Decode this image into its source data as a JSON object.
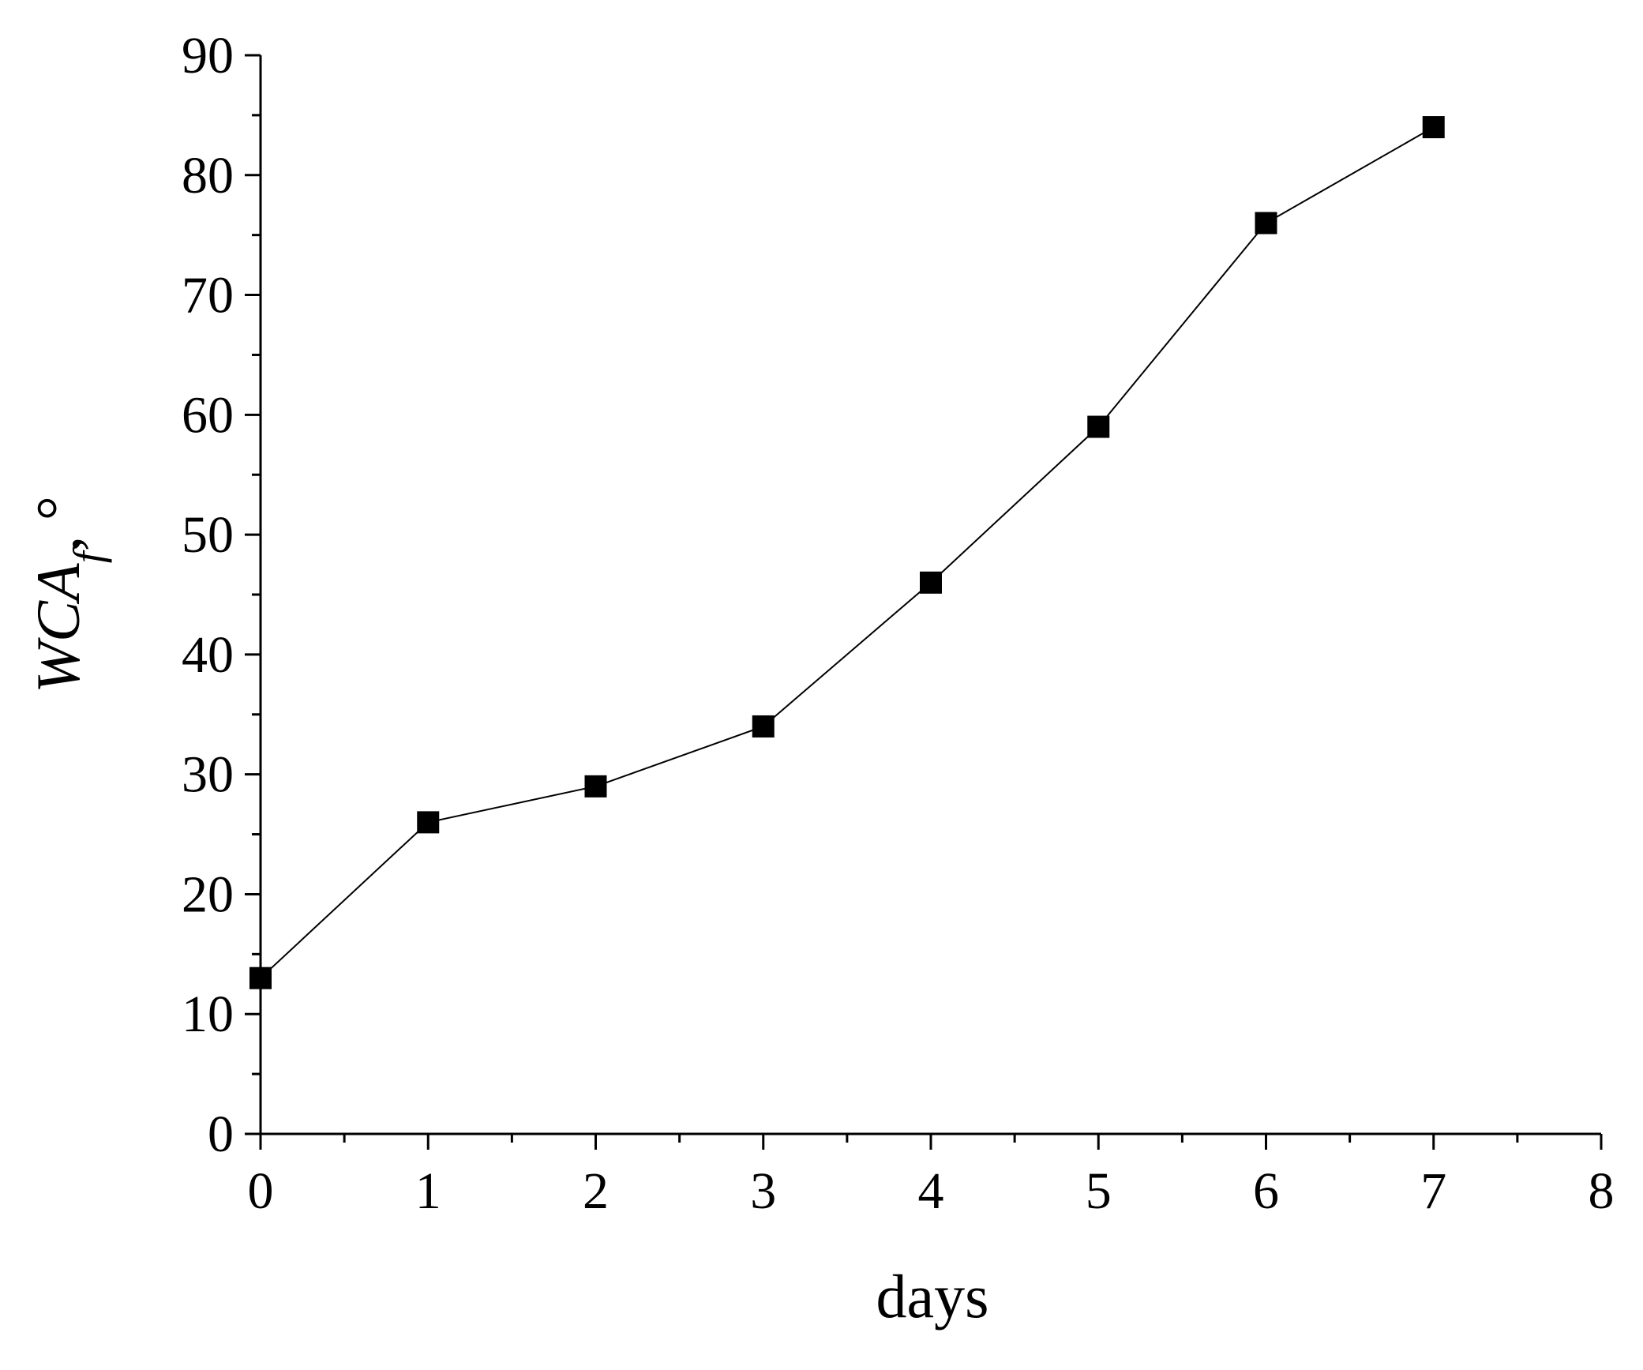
{
  "chart_data": {
    "type": "line",
    "title": "",
    "xlabel": "days",
    "ylabel": {
      "main": "WCA",
      "subscript": "f",
      "suffix": ", °"
    },
    "xlim": [
      0,
      8
    ],
    "ylim": [
      0,
      90
    ],
    "x_ticks": [
      0,
      1,
      2,
      3,
      4,
      5,
      6,
      7,
      8
    ],
    "y_ticks": [
      0,
      10,
      20,
      30,
      40,
      50,
      60,
      70,
      80,
      90
    ],
    "grid": false,
    "legend": "none",
    "marker": "square",
    "colors": {
      "line": "#000000",
      "marker": "#000000",
      "axis": "#000000"
    },
    "series": [
      {
        "x": [
          0,
          1,
          2,
          3,
          4,
          5,
          6,
          7
        ],
        "y": [
          13,
          26,
          29,
          34,
          46,
          59,
          76,
          84
        ]
      }
    ]
  }
}
